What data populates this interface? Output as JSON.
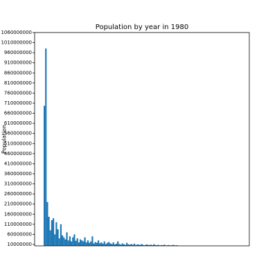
{
  "chart_data": {
    "type": "bar",
    "title": "Population by year in 1980",
    "y_label": "Population",
    "categories": [
      null,
      null,
      null,
      null,
      null,
      null,
      null,
      null,
      null,
      null,
      null,
      null,
      null,
      null,
      null,
      null,
      null,
      null,
      null,
      null,
      null,
      null,
      null,
      null,
      null,
      null,
      null,
      null,
      null,
      null,
      null,
      null,
      null,
      null,
      null,
      null,
      null,
      null,
      null,
      null,
      null,
      null,
      null,
      null,
      null,
      null,
      null,
      null,
      null,
      null,
      null,
      null,
      null,
      null,
      null,
      null,
      null,
      null,
      null,
      null,
      null,
      null,
      null,
      null,
      null,
      null,
      null,
      null,
      null,
      null,
      null,
      null,
      null,
      null,
      null,
      null,
      null,
      null,
      null,
      null,
      null,
      null,
      null,
      null,
      null,
      null,
      null,
      null,
      null,
      null
    ],
    "values": [
      697000000,
      981000000,
      220000000,
      147000000,
      80000000,
      130000000,
      140000000,
      60000000,
      120000000,
      85000000,
      40000000,
      110000000,
      55000000,
      45000000,
      35000000,
      70000000,
      30000000,
      50000000,
      25000000,
      45000000,
      60000000,
      28000000,
      40000000,
      20000000,
      35000000,
      30000000,
      25000000,
      45000000,
      20000000,
      30000000,
      18000000,
      25000000,
      50000000,
      15000000,
      22000000,
      18000000,
      30000000,
      16000000,
      20000000,
      14000000,
      25000000,
      12000000,
      18000000,
      22000000,
      15000000,
      12000000,
      20000000,
      10000000,
      14000000,
      25000000,
      12000000,
      9000000,
      15000000,
      11000000,
      8000000,
      18000000,
      10000000,
      9000000,
      12000000,
      8000000,
      14000000,
      7000000,
      10000000,
      9000000,
      8000000,
      12000000,
      7000000,
      6000000,
      10000000,
      8000000,
      7000000,
      9000000,
      6000000,
      11000000,
      7000000,
      6000000,
      8000000,
      5000000,
      7000000,
      6000000,
      9000000,
      5000000,
      6000000,
      7000000,
      5000000,
      6000000,
      8000000,
      5000000,
      6000000,
      5000000
    ],
    "color": "#1f77b4",
    "ylim": [
      3000000,
      1060000000
    ],
    "yticks": [
      10000000,
      60000000,
      110000000,
      160000000,
      210000000,
      260000000,
      310000000,
      360000000,
      410000000,
      460000000,
      510000000,
      560000000,
      610000000,
      660000000,
      710000000,
      760000000,
      810000000,
      860000000,
      910000000,
      960000000,
      1010000000,
      1060000000
    ]
  }
}
